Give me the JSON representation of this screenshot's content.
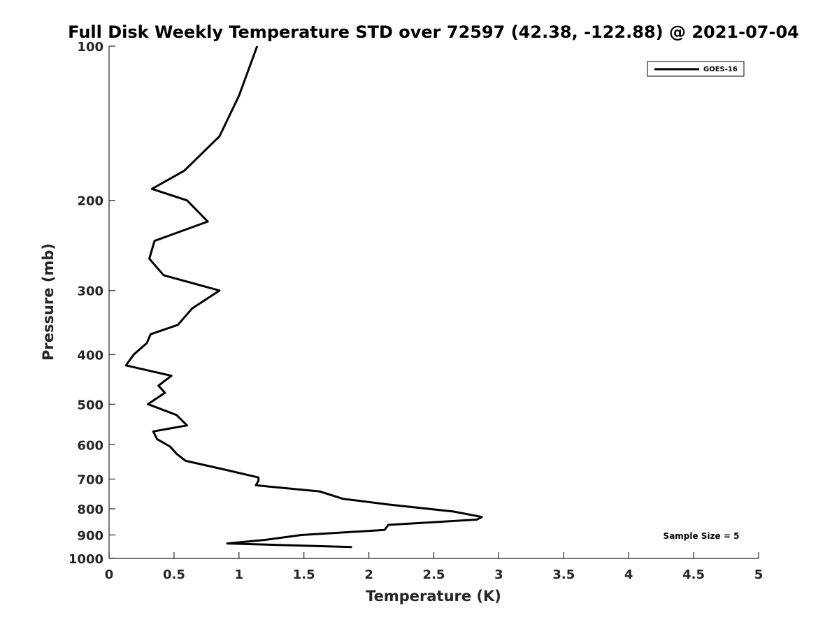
{
  "chart_data": {
    "type": "line",
    "title": "Full Disk Weekly Temperature STD over 72597 (42.38, -122.88) @ 2021-07-04",
    "xlabel": "Temperature (K)",
    "ylabel": "Pressure (mb)",
    "xlim": [
      0,
      5
    ],
    "ylim": [
      100,
      1000
    ],
    "y_scale": "log",
    "y_reversed": true,
    "grid": false,
    "x_ticks": [
      "0",
      "0.5",
      "1",
      "1.5",
      "2",
      "2.5",
      "3",
      "3.5",
      "4",
      "4.5",
      "5"
    ],
    "y_ticks": [
      "100",
      "200",
      "300",
      "400",
      "500",
      "600",
      "700",
      "800",
      "900",
      "1000"
    ],
    "legend_position": "top-right",
    "annotation": "Sample Size = 5",
    "series": [
      {
        "name": "GOES-16",
        "color": "#000000",
        "points": [
          [
            1.14,
            100
          ],
          [
            1.0,
            125
          ],
          [
            0.85,
            150
          ],
          [
            0.58,
            175
          ],
          [
            0.33,
            190
          ],
          [
            0.6,
            200
          ],
          [
            0.76,
            220
          ],
          [
            0.35,
            240
          ],
          [
            0.31,
            260
          ],
          [
            0.42,
            280
          ],
          [
            0.85,
            300
          ],
          [
            0.64,
            325
          ],
          [
            0.53,
            350
          ],
          [
            0.32,
            365
          ],
          [
            0.29,
            380
          ],
          [
            0.19,
            400
          ],
          [
            0.13,
            420
          ],
          [
            0.48,
            440
          ],
          [
            0.38,
            460
          ],
          [
            0.43,
            475
          ],
          [
            0.3,
            500
          ],
          [
            0.52,
            525
          ],
          [
            0.6,
            550
          ],
          [
            0.34,
            565
          ],
          [
            0.37,
            585
          ],
          [
            0.47,
            605
          ],
          [
            0.52,
            625
          ],
          [
            0.59,
            645
          ],
          [
            0.88,
            670
          ],
          [
            1.15,
            695
          ],
          [
            1.15,
            705
          ],
          [
            1.13,
            720
          ],
          [
            1.62,
            740
          ],
          [
            1.8,
            765
          ],
          [
            2.15,
            785
          ],
          [
            2.65,
            810
          ],
          [
            2.87,
            830
          ],
          [
            2.83,
            840
          ],
          [
            2.15,
            860
          ],
          [
            2.12,
            880
          ],
          [
            1.48,
            900
          ],
          [
            1.2,
            920
          ],
          [
            0.91,
            935
          ],
          [
            1.87,
            950
          ]
        ]
      }
    ]
  }
}
